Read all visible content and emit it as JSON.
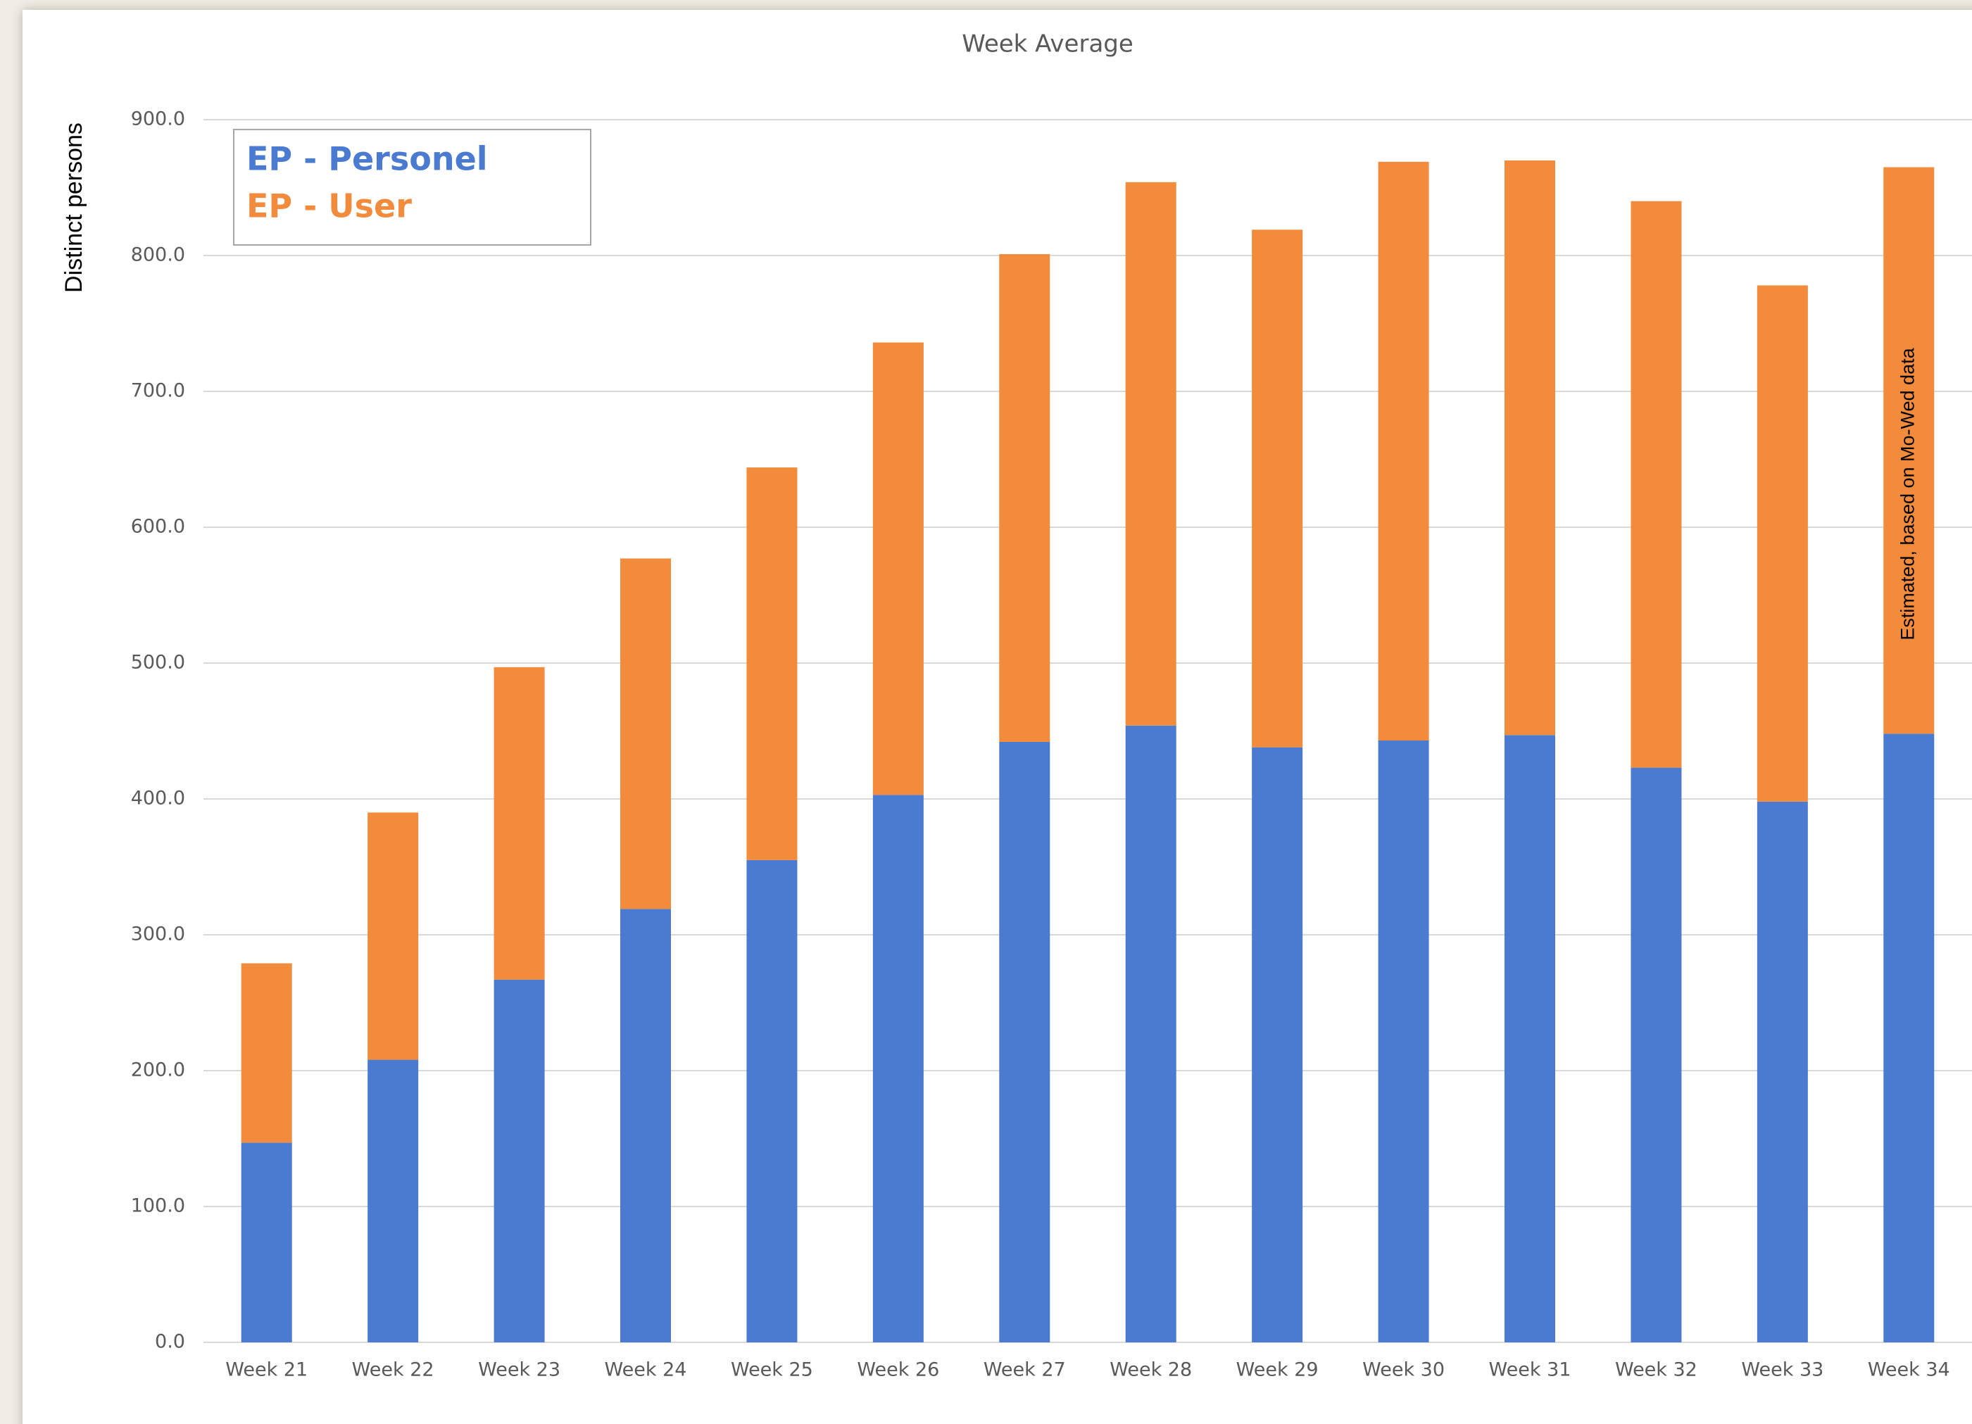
{
  "chart_data": {
    "type": "stacked_bar",
    "title": "Week Average",
    "y_label": "Distinct persons",
    "annotation": "Estimated, based on Mo-Wed data",
    "categories": [
      "Week 21",
      "Week 22",
      "Week 23",
      "Week 24",
      "Week 25",
      "Week 26",
      "Week 27",
      "Week 28",
      "Week 29",
      "Week 30",
      "Week 31",
      "Week 32",
      "Week 33",
      "Week 34"
    ],
    "series": [
      {
        "name": "EP - Personel",
        "color": "#4a7bd0",
        "values": [
          147,
          208,
          267,
          319,
          355,
          403,
          442,
          454,
          438,
          443,
          447,
          423,
          398,
          448
        ]
      },
      {
        "name": "EP - User",
        "color": "#f28b3c",
        "values": [
          132,
          182,
          230,
          258,
          289,
          333,
          359,
          400,
          381,
          426,
          423,
          417,
          380,
          417
        ]
      }
    ],
    "ylim": [
      0,
      900
    ],
    "yticks": [
      {
        "value": 0,
        "label": "0.0"
      },
      {
        "value": 100,
        "label": "100.0"
      },
      {
        "value": 200,
        "label": "200.0"
      },
      {
        "value": 300,
        "label": "300.0"
      },
      {
        "value": 400,
        "label": "400.0"
      },
      {
        "value": 500,
        "label": "500.0"
      },
      {
        "value": 600,
        "label": "600.0"
      },
      {
        "value": 700,
        "label": "700.0"
      },
      {
        "value": 800,
        "label": "800.0"
      },
      {
        "value": 900,
        "label": "900.0"
      }
    ],
    "grid": true,
    "legend": "top-left"
  }
}
